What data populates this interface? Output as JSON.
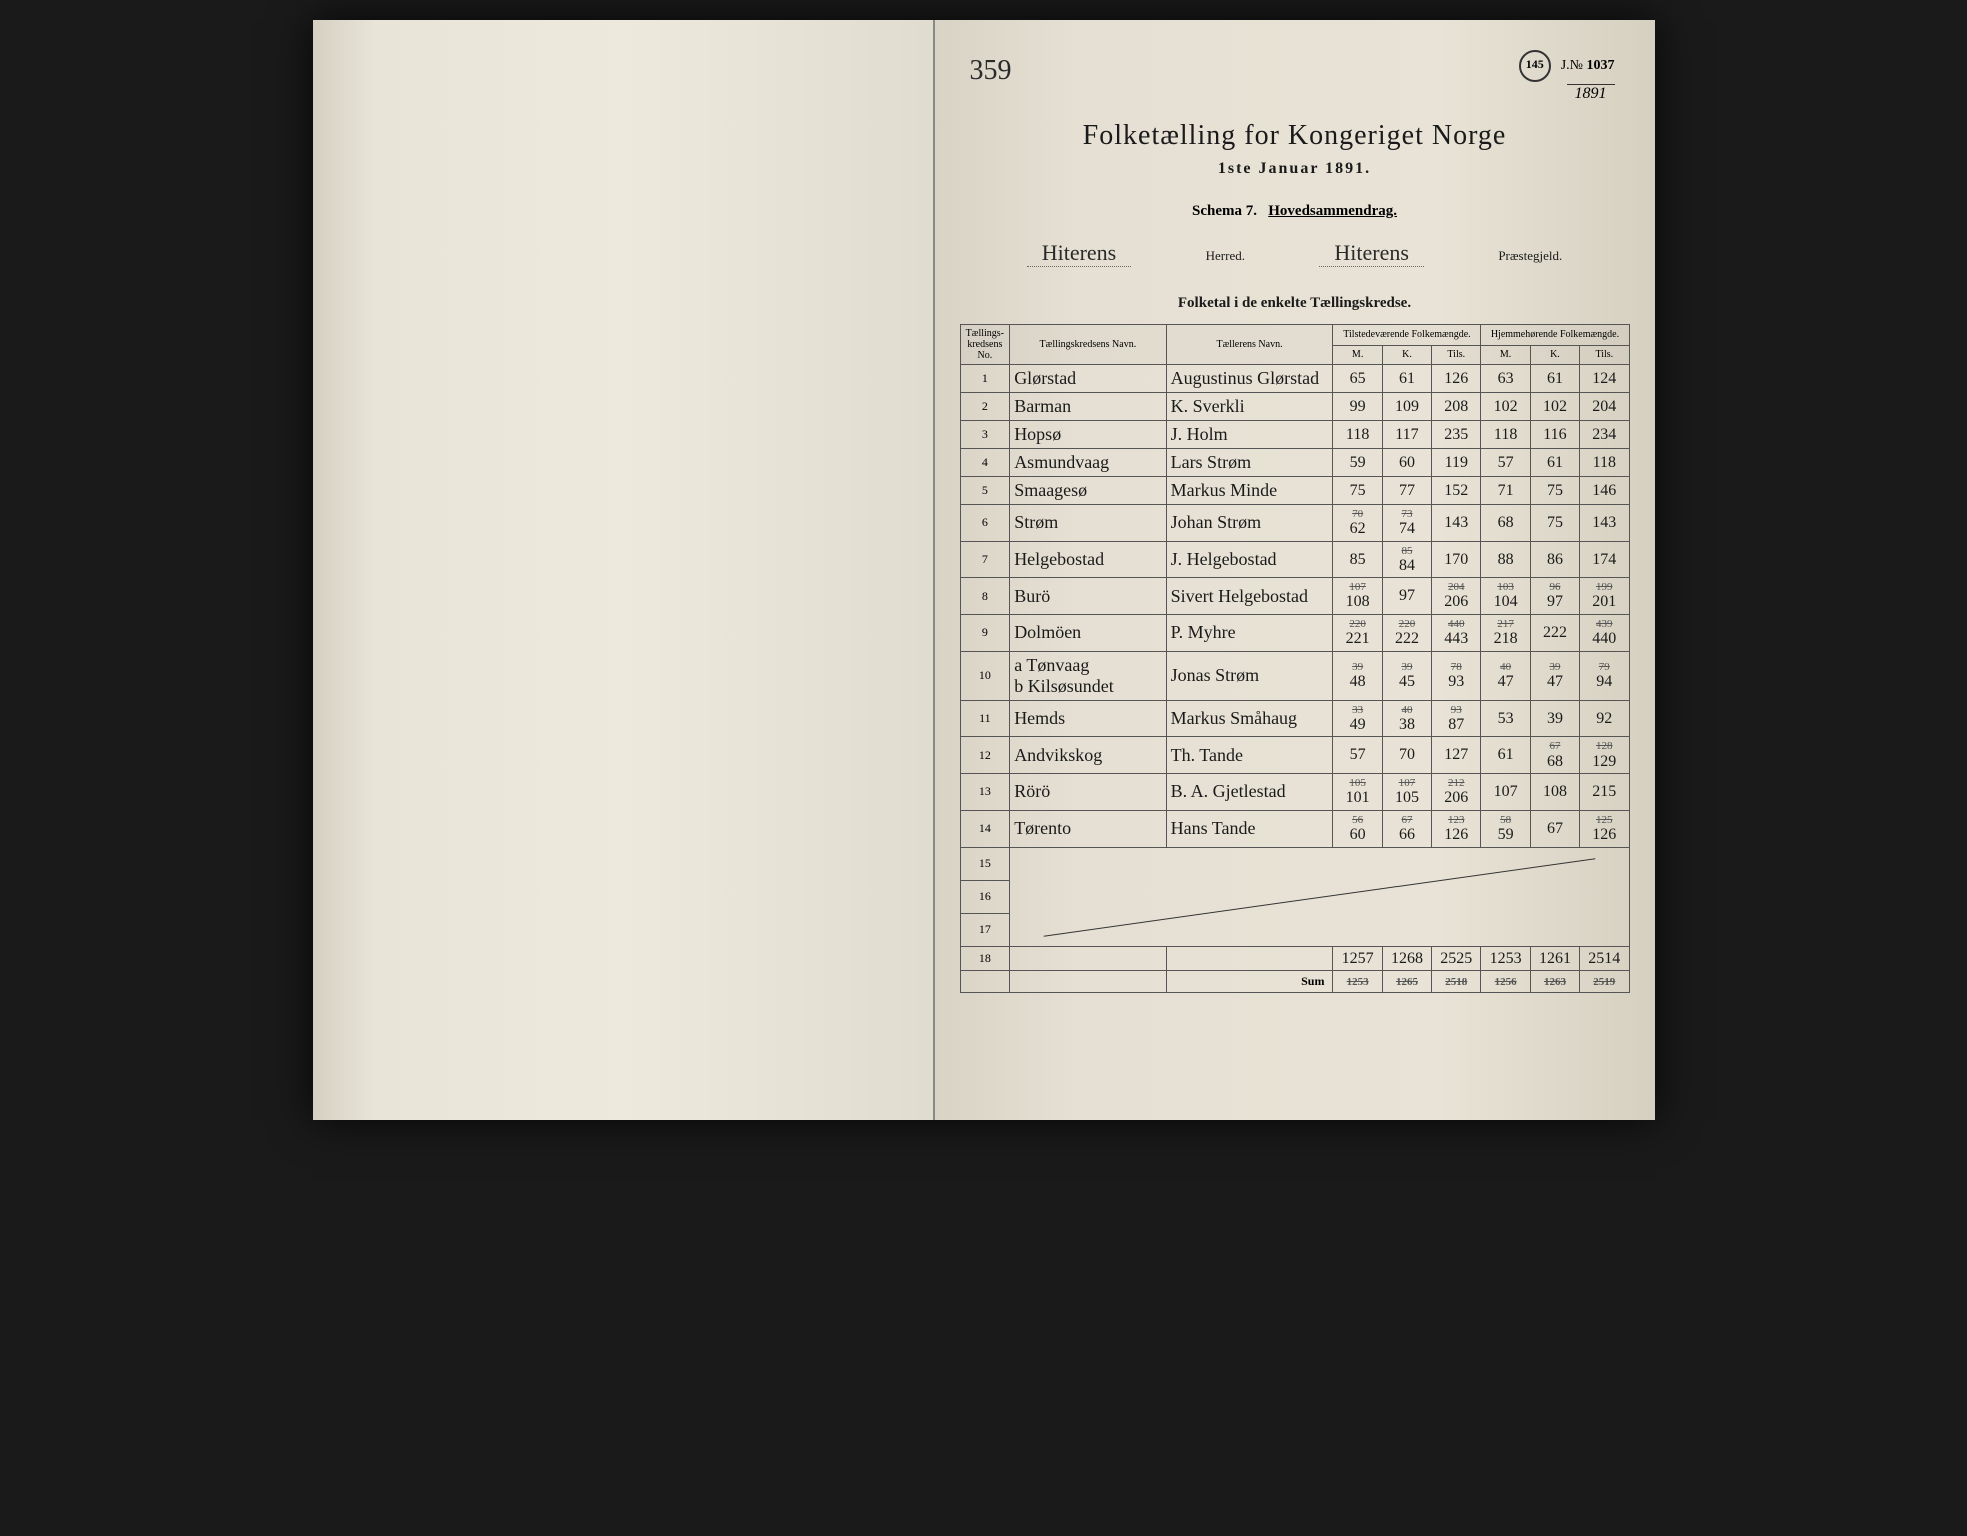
{
  "pageMarker": "359",
  "stamp": {
    "circle": "145",
    "journalLabel": "J.№",
    "journalNo": "1037",
    "year": "1891"
  },
  "titles": {
    "main": "Folketælling for Kongeriget Norge",
    "date": "1ste Januar 1891.",
    "schemaPrefix": "Schema 7.",
    "schemaSuffix": "Hovedsammendrag.",
    "herred": "Hiterens",
    "herredLabel": "Herred.",
    "praestegjeld": "Hiterens",
    "praestegjeldLabel": "Præstegjeld.",
    "section": "Folketal i de enkelte Tællingskredse."
  },
  "headers": {
    "no": "Tællings-\nkredsens No.",
    "kredsName": "Tællingskredsens Navn.",
    "enumerator": "Tællerens Navn.",
    "present": "Tilstedeværende\nFolkemængde.",
    "resident": "Hjemmehørende\nFolkemængde.",
    "m": "M.",
    "k": "K.",
    "tils": "Tils."
  },
  "rows": [
    {
      "no": "1",
      "name": "Glørstad",
      "enum": "Augustinus Glørstad",
      "pm": "65",
      "pk": "61",
      "pt": "126",
      "rm": "63",
      "rk": "61",
      "rt": "124"
    },
    {
      "no": "2",
      "name": "Barman",
      "enum": "K. Sverkli",
      "pm": "99",
      "pk": "109",
      "pt": "208",
      "rm": "102",
      "rk": "102",
      "rt": "204"
    },
    {
      "no": "3",
      "name": "Hopsø",
      "enum": "J. Holm",
      "pm": "118",
      "pk": "117",
      "pt": "235",
      "rm": "118",
      "rk": "116",
      "rt": "234"
    },
    {
      "no": "4",
      "name": "Asmundvaag",
      "enum": "Lars Strøm",
      "pm": "59",
      "pk": "60",
      "pt": "119",
      "rm": "57",
      "rk": "61",
      "rt": "118"
    },
    {
      "no": "5",
      "name": "Smaagesø",
      "enum": "Markus Minde",
      "pm": "75",
      "pk": "77",
      "pt": "152",
      "rm": "71",
      "rk": "75",
      "rt": "146"
    },
    {
      "no": "6",
      "name": "Strøm",
      "enum": "Johan Strøm",
      "pm": "70\n62",
      "pk": "73\n74",
      "pt": "143",
      "rm": "68",
      "rk": "75",
      "rt": "143"
    },
    {
      "no": "7",
      "name": "Helgebostad",
      "enum": "J. Helgebostad",
      "pm": "85",
      "pk": "85\n84",
      "pt": "170",
      "rm": "88",
      "rk": "86",
      "rt": "174"
    },
    {
      "no": "8",
      "name": "Burö",
      "enum": "Sivert Helgebostad",
      "pm": "107\n108",
      "pk": "97",
      "pt": "204\n206",
      "rm": "103\n104",
      "rk": "96\n97",
      "rt": "199\n201"
    },
    {
      "no": "9",
      "name": "Dolmöen",
      "enum": "P. Myhre",
      "pm": "220\n221",
      "pk": "220\n222",
      "pt": "440\n443",
      "rm": "217\n218",
      "rk": "222",
      "rt": "439\n440"
    },
    {
      "no": "10",
      "name": "a Tønvaag\nb Kilsøsundet",
      "enum": "Jonas Strøm",
      "pm": "39\n48",
      "pk": "39\n45",
      "pt": "78\n93",
      "rm": "40\n47",
      "rk": "39\n47",
      "rt": "79\n94"
    },
    {
      "no": "11",
      "name": "Hemds",
      "enum": "Markus Småhaug",
      "pm": "33\n49",
      "pk": "40\n38",
      "pt": "93\n87",
      "rm": "53",
      "rk": "39",
      "rt": "92"
    },
    {
      "no": "12",
      "name": "Andvikskog",
      "enum": "Th. Tande",
      "pm": "57",
      "pk": "70",
      "pt": "127",
      "rm": "61",
      "rk": "67\n68",
      "rt": "128\n129"
    },
    {
      "no": "13",
      "name": "Rörö",
      "enum": "B. A. Gjetlestad",
      "pm": "105\n101",
      "pk": "107\n105",
      "pt": "212\n206",
      "rm": "107",
      "rk": "108",
      "rt": "215"
    },
    {
      "no": "14",
      "name": "Tørento",
      "enum": "Hans Tande",
      "pm": "56\n60",
      "pk": "67\n66",
      "pt": "123\n126",
      "rm": "58\n59",
      "rk": "67",
      "rt": "125\n126"
    }
  ],
  "emptyRows": [
    "15",
    "16",
    "17"
  ],
  "totals": {
    "no": "18",
    "pm": "1257",
    "pk": "1268",
    "pt": "2525",
    "rm": "1253",
    "rk": "1261",
    "rt": "2514"
  },
  "sum": {
    "label": "Sum",
    "pm": "1253",
    "pk": "1265",
    "pt": "2518",
    "rm": "1256",
    "rk": "1263",
    "rt": "2519"
  }
}
